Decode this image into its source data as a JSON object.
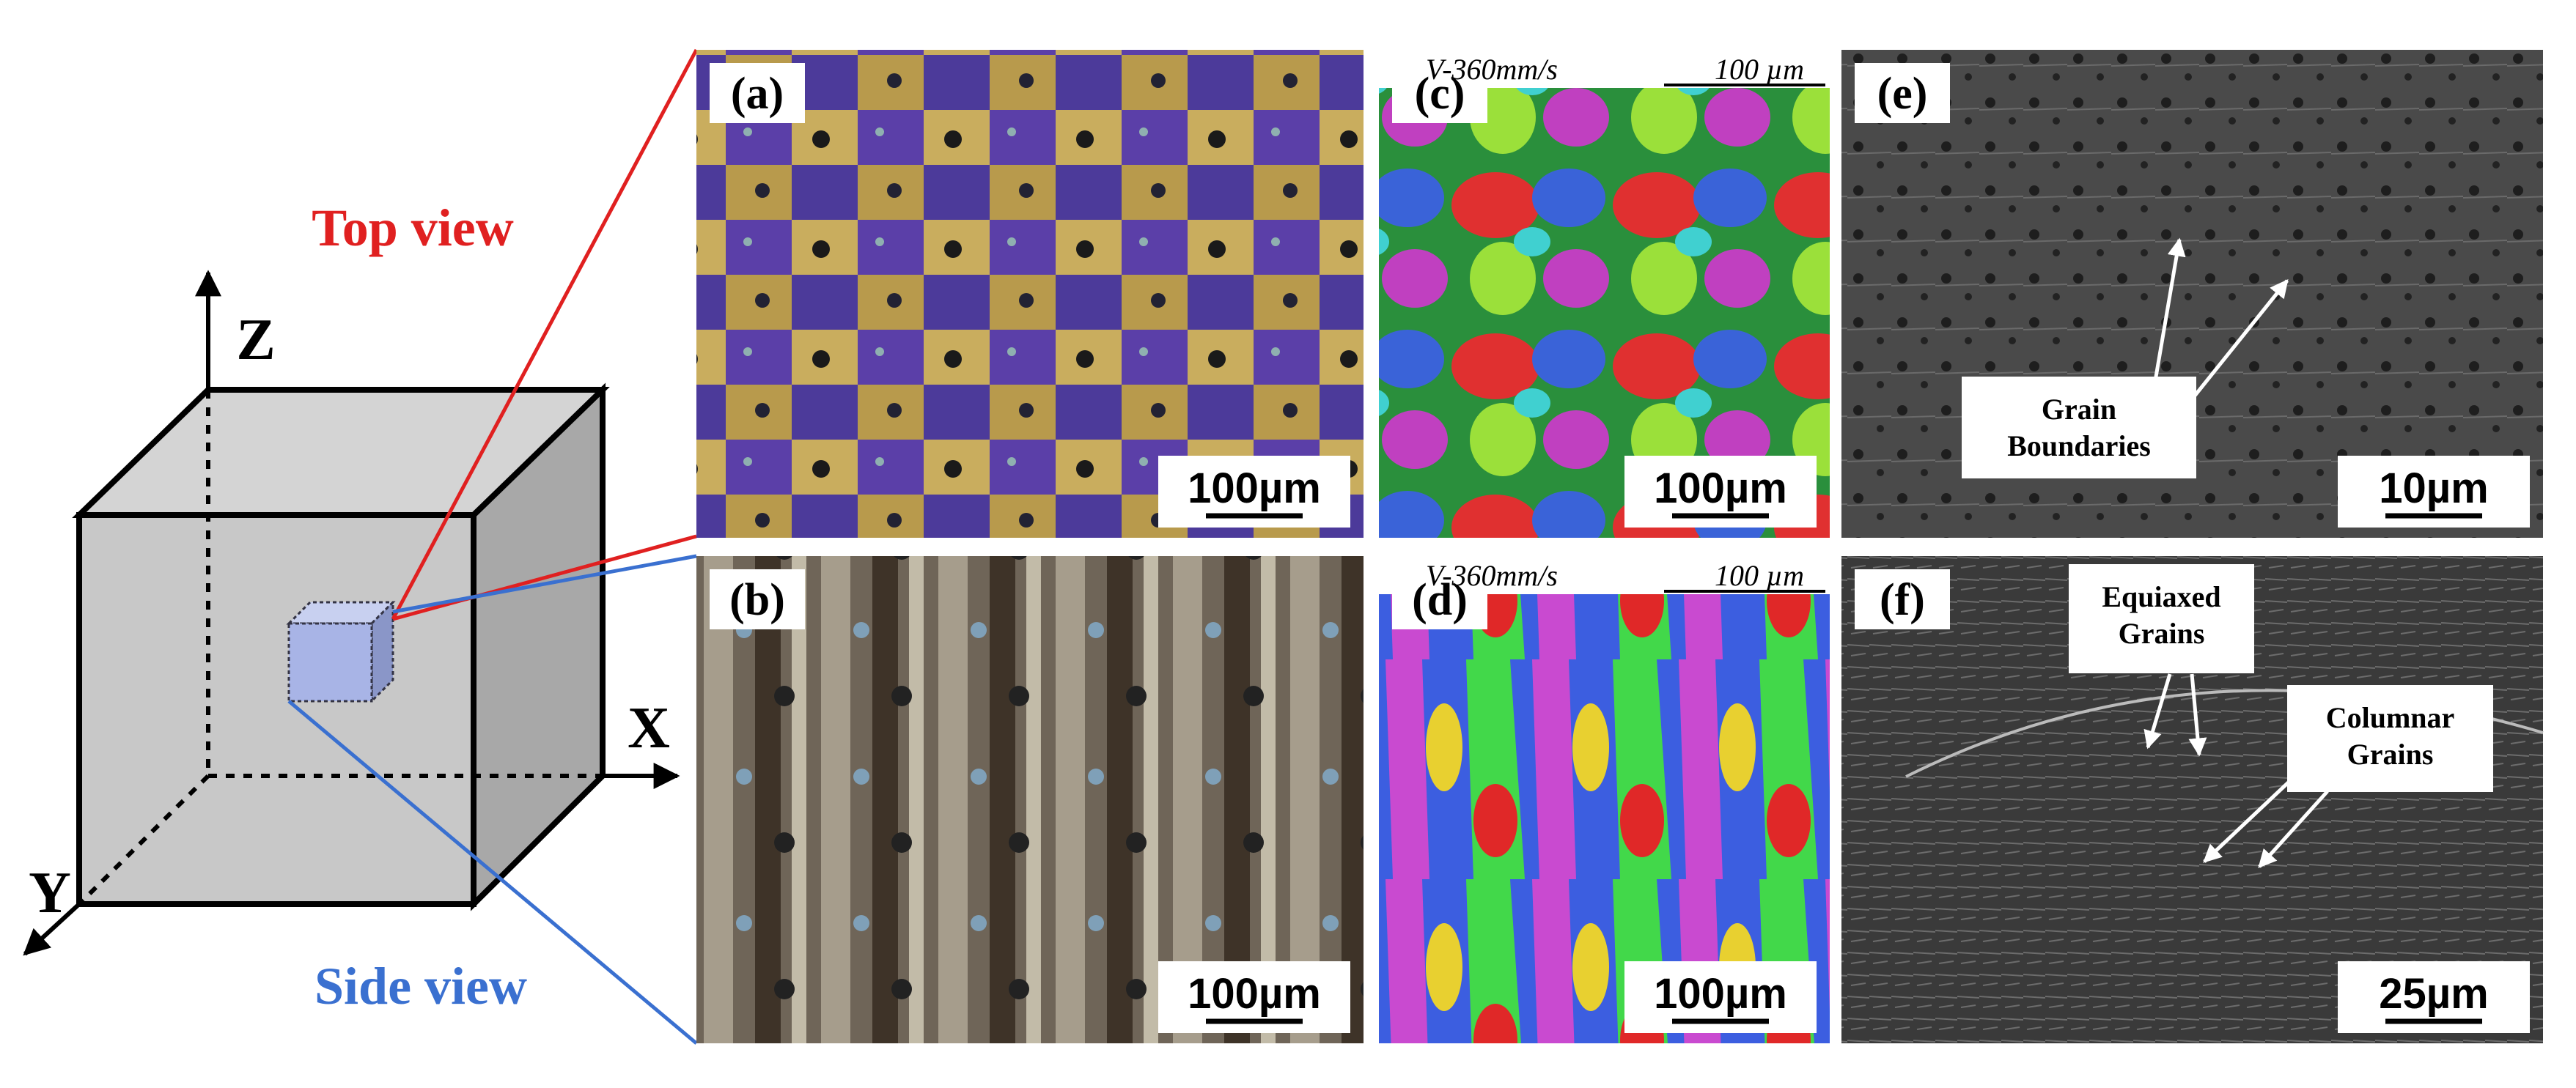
{
  "schematic": {
    "axes": {
      "z": "Z",
      "x": "X",
      "y": "Y"
    },
    "views": {
      "top": "Top view",
      "side": "Side view"
    }
  },
  "panels": [
    {
      "label": "(a)",
      "scale_bar": "100µm"
    },
    {
      "label": "(b)",
      "scale_bar": "100µm"
    },
    {
      "label": "(c)",
      "scale_bar": "100µm",
      "caption": {
        "speed": "V-360mm/s",
        "scale": "100 µm"
      }
    },
    {
      "label": "(d)",
      "scale_bar": "100µm",
      "caption": {
        "speed": "V-360mm/s",
        "scale": "100 µm"
      }
    },
    {
      "label": "(e)",
      "scale_bar": "10µm",
      "annotations": [
        {
          "lines": [
            "Grain",
            "Boundaries"
          ]
        }
      ]
    },
    {
      "label": "(f)",
      "scale_bar": "25µm",
      "annotations": [
        {
          "lines": [
            "Equiaxed",
            "Grains"
          ]
        },
        {
          "lines": [
            "Columnar",
            "Grains"
          ]
        }
      ]
    }
  ]
}
